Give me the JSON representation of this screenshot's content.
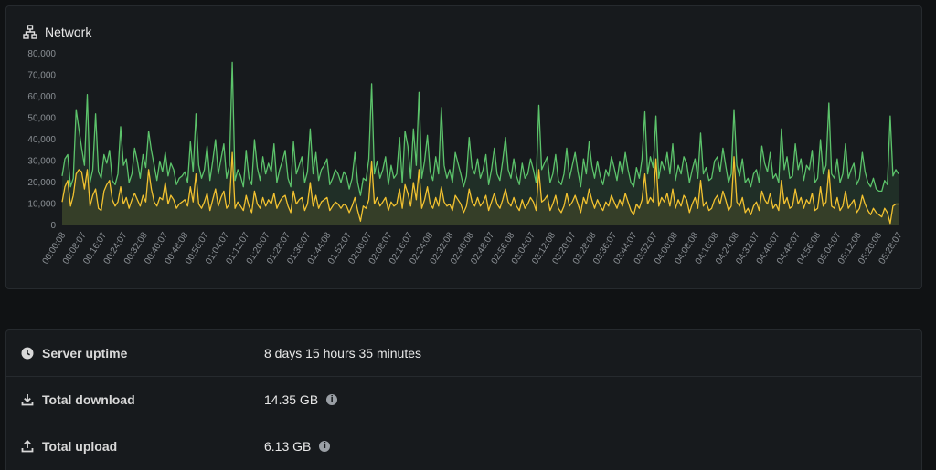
{
  "network_card": {
    "title": "Network",
    "icon": "network-icon"
  },
  "chart_data": {
    "type": "area",
    "title": "",
    "xlabel": "",
    "ylabel": "",
    "ylim": [
      0,
      80000
    ],
    "y_ticks": [
      "0",
      "10,000",
      "20,000",
      "30,000",
      "40,000",
      "50,000",
      "60,000",
      "70,000",
      "80,000"
    ],
    "x_ticks": [
      "00:00:08",
      "00:08:07",
      "00:16:07",
      "00:24:07",
      "00:32:08",
      "00:40:07",
      "00:48:08",
      "00:56:07",
      "01:04:07",
      "01:12:07",
      "01:20:07",
      "01:28:07",
      "01:36:07",
      "01:44:08",
      "01:52:07",
      "02:00:07",
      "02:08:07",
      "02:16:07",
      "02:24:08",
      "02:32:08",
      "02:40:08",
      "02:48:07",
      "02:56:08",
      "03:04:07",
      "03:12:08",
      "03:20:07",
      "03:28:08",
      "03:36:07",
      "03:44:07",
      "03:52:07",
      "04:00:08",
      "04:08:08",
      "04:16:08",
      "04:24:08",
      "04:32:07",
      "04:40:07",
      "04:48:07",
      "04:56:08",
      "05:04:07",
      "05:12:08",
      "05:20:08",
      "05:28:07"
    ],
    "grid": false,
    "series": [
      {
        "color": "#5cc36b",
        "values": [
          23000,
          31000,
          33000,
          18000,
          22000,
          54000,
          45000,
          36000,
          28000,
          61000,
          20000,
          26000,
          52000,
          25000,
          22000,
          33000,
          29000,
          35000,
          21000,
          19000,
          24000,
          46000,
          28000,
          31000,
          20000,
          24000,
          36000,
          30000,
          22000,
          33000,
          27000,
          44000,
          35000,
          28000,
          21000,
          30000,
          25000,
          34000,
          23000,
          29000,
          26000,
          19000,
          22000,
          23000,
          25000,
          20000,
          39000,
          25000,
          52000,
          28000,
          22000,
          26000,
          37000,
          21000,
          30000,
          40000,
          24000,
          31000,
          38000,
          22000,
          28000,
          76000,
          21000,
          26000,
          23000,
          18000,
          35000,
          22000,
          19000,
          40000,
          27000,
          21000,
          32000,
          24000,
          29000,
          25000,
          38000,
          20000,
          26000,
          30000,
          35000,
          22000,
          18000,
          39000,
          24000,
          28000,
          32000,
          20000,
          25000,
          45000,
          24000,
          34000,
          21000,
          26000,
          28000,
          31000,
          19000,
          22000,
          26000,
          24000,
          20000,
          25000,
          23000,
          17000,
          22000,
          34000,
          20000,
          14000,
          22000,
          21000,
          31000,
          66000,
          24000,
          30000,
          22000,
          26000,
          32000,
          19000,
          28000,
          22000,
          24000,
          41000,
          20000,
          44000,
          37000,
          22000,
          45000,
          28000,
          62000,
          22000,
          30000,
          42000,
          25000,
          21000,
          32000,
          24000,
          55000,
          28000,
          22000,
          26000,
          20000,
          34000,
          29000,
          24000,
          18000,
          23000,
          41000,
          27000,
          24000,
          31000,
          22000,
          26000,
          33000,
          19000,
          26000,
          36000,
          24000,
          21000,
          30000,
          41000,
          26000,
          22000,
          31000,
          23000,
          19000,
          29000,
          22000,
          24000,
          31000,
          26000,
          20000,
          56000,
          26000,
          29000,
          32000,
          20000,
          24000,
          33000,
          21000,
          19000,
          24000,
          36000,
          22000,
          28000,
          34000,
          25000,
          18000,
          31000,
          24000,
          39000,
          28000,
          22000,
          30000,
          23000,
          19000,
          26000,
          23000,
          32000,
          27000,
          21000,
          30000,
          24000,
          34000,
          26000,
          20000,
          18000,
          27000,
          22000,
          31000,
          53000,
          24000,
          32000,
          27000,
          51000,
          22000,
          30000,
          26000,
          34000,
          24000,
          38000,
          21000,
          28000,
          24000,
          32000,
          29000,
          20000,
          26000,
          31000,
          22000,
          43000,
          24000,
          27000,
          21000,
          22000,
          30000,
          32000,
          25000,
          36000,
          28000,
          20000,
          24000,
          54000,
          28000,
          23000,
          31000,
          20000,
          22000,
          18000,
          24000,
          26000,
          20000,
          37000,
          29000,
          25000,
          34000,
          22000,
          24000,
          20000,
          45000,
          26000,
          32000,
          22000,
          23000,
          38000,
          26000,
          31000,
          21000,
          28000,
          26000,
          35000,
          20000,
          22000,
          40000,
          24000,
          28000,
          57000,
          24000,
          22000,
          31000,
          20000,
          24000,
          38000,
          22000,
          26000,
          29000,
          19000,
          22000,
          34000,
          25000,
          20000,
          18000,
          22000,
          17000,
          16000,
          16000,
          21000,
          19000,
          51000,
          23000,
          26000,
          24000
        ],
        "fill": true
      },
      {
        "color": "#f2c230",
        "values": [
          11000,
          18000,
          21000,
          9000,
          14000,
          24000,
          26000,
          25000,
          17000,
          26000,
          9000,
          14000,
          17000,
          8000,
          7000,
          16000,
          19000,
          21000,
          12000,
          9000,
          11000,
          18000,
          10000,
          13000,
          8000,
          12000,
          15000,
          12000,
          9000,
          14000,
          11000,
          26000,
          17000,
          11000,
          9000,
          13000,
          12000,
          20000,
          10000,
          14000,
          12000,
          8000,
          10000,
          11000,
          12000,
          9000,
          18000,
          11000,
          24000,
          10000,
          8000,
          11000,
          15000,
          7000,
          12000,
          17000,
          9000,
          13000,
          16000,
          8000,
          10000,
          34000,
          8000,
          11000,
          9000,
          7000,
          14000,
          9000,
          6000,
          16000,
          10000,
          8000,
          13000,
          9000,
          12000,
          10000,
          15000,
          8000,
          11000,
          13000,
          14000,
          9000,
          6000,
          16000,
          10000,
          12000,
          13000,
          7000,
          10000,
          20000,
          9000,
          14000,
          8000,
          11000,
          12000,
          13000,
          7000,
          9000,
          11000,
          10000,
          8000,
          10000,
          9000,
          6000,
          9000,
          13000,
          7000,
          2000,
          9000,
          8000,
          12000,
          30000,
          10000,
          13000,
          9000,
          11000,
          13000,
          7000,
          11000,
          9000,
          10000,
          17000,
          8000,
          19000,
          15000,
          9000,
          20000,
          12000,
          26000,
          8000,
          12000,
          18000,
          10000,
          8000,
          13000,
          9000,
          18000,
          11000,
          9000,
          10000,
          7000,
          14000,
          12000,
          10000,
          6000,
          9000,
          17000,
          11000,
          9000,
          13000,
          9000,
          11000,
          14000,
          7000,
          11000,
          15000,
          10000,
          8000,
          12000,
          17000,
          11000,
          9000,
          13000,
          9000,
          7000,
          12000,
          8000,
          10000,
          13000,
          11000,
          7000,
          26000,
          11000,
          12000,
          14000,
          7000,
          10000,
          14000,
          8000,
          6000,
          9000,
          15000,
          9000,
          11000,
          14000,
          10000,
          6000,
          13000,
          10000,
          17000,
          12000,
          8000,
          12000,
          9000,
          7000,
          11000,
          9000,
          14000,
          11000,
          8000,
          12000,
          9000,
          15000,
          11000,
          7000,
          5000,
          10000,
          8000,
          12000,
          24000,
          10000,
          13000,
          11000,
          31000,
          9000,
          13000,
          11000,
          15000,
          9000,
          17000,
          8000,
          12000,
          9000,
          14000,
          12000,
          6000,
          10000,
          13000,
          8000,
          21000,
          9000,
          11000,
          7000,
          8000,
          12000,
          14000,
          10000,
          16000,
          12000,
          7000,
          9000,
          32000,
          11000,
          9000,
          13000,
          6000,
          8000,
          5000,
          9000,
          11000,
          7000,
          16000,
          12000,
          10000,
          15000,
          8000,
          10000,
          7000,
          21000,
          10000,
          13000,
          8000,
          9000,
          17000,
          10000,
          13000,
          8000,
          12000,
          10000,
          15000,
          7000,
          8000,
          18000,
          9000,
          11000,
          26000,
          9000,
          8000,
          13000,
          7000,
          9000,
          16000,
          8000,
          10000,
          12000,
          6000,
          8000,
          14000,
          10000,
          7000,
          5000,
          8000,
          6000,
          5000,
          4000,
          8000,
          6000,
          1000,
          9000,
          10000,
          10000
        ],
        "fill": true
      }
    ]
  },
  "stats": [
    {
      "icon": "clock-icon",
      "label": "Server uptime",
      "value": "8 days 15 hours 35 minutes",
      "info": false
    },
    {
      "icon": "download-icon",
      "label": "Total download",
      "value": "14.35 GB",
      "info": true
    },
    {
      "icon": "upload-icon",
      "label": "Total upload",
      "value": "6.13 GB",
      "info": true
    }
  ]
}
